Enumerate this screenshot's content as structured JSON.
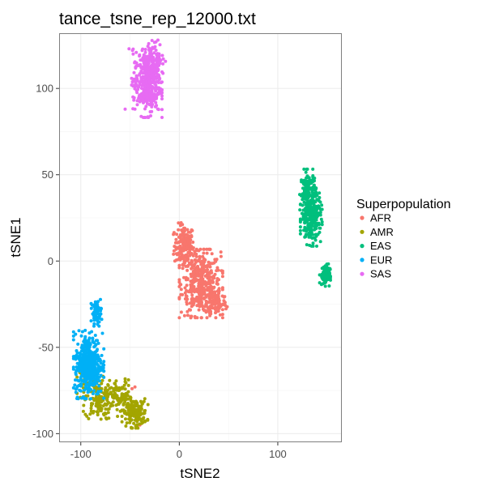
{
  "chart_data": {
    "type": "scatter",
    "title": "tance_tsne_rep_12000.txt",
    "xlabel": "tSNE2",
    "ylabel": "tSNE1",
    "xlim": [
      -122,
      165
    ],
    "ylim": [
      -105,
      132
    ],
    "x_ticks": [
      -100,
      0,
      100
    ],
    "y_ticks": [
      -100,
      -50,
      0,
      50,
      100
    ],
    "x_tick_labels": [
      "-100",
      "0",
      "100"
    ],
    "y_tick_labels": [
      "-100",
      "-50",
      "0",
      "50",
      "100"
    ],
    "grid": true,
    "legend_placement": "right",
    "legend_title": "Superpopulation",
    "series": [
      {
        "name": "AFR",
        "color": "#F8766D",
        "clusters": [
          {
            "cx": 5,
            "cy": 9,
            "sx": 5,
            "sy": 6,
            "n": 160
          },
          {
            "cx": 22,
            "cy": -13,
            "sx": 10,
            "sy": 9,
            "n": 420
          },
          {
            "cx": 38,
            "cy": -24,
            "sx": 5,
            "sy": 4,
            "n": 90
          }
        ],
        "extra_points": [
          [
            -48,
            -74
          ],
          [
            -40,
            -95
          ],
          [
            -45,
            -73
          ]
        ]
      },
      {
        "name": "AMR",
        "color": "#A3A500",
        "clusters": [
          {
            "cx": -82,
            "cy": -80,
            "sx": 7,
            "sy": 6,
            "n": 140
          },
          {
            "cx": -60,
            "cy": -79,
            "sx": 6,
            "sy": 5,
            "n": 90
          },
          {
            "cx": -45,
            "cy": -88,
            "sx": 6,
            "sy": 4,
            "n": 150
          },
          {
            "cx": -95,
            "cy": -68,
            "sx": 4,
            "sy": 5,
            "n": 40
          }
        ],
        "extra_points": []
      },
      {
        "name": "EAS",
        "color": "#00BF7D",
        "clusters": [
          {
            "cx": 131,
            "cy": 40,
            "sx": 4,
            "sy": 6,
            "n": 140
          },
          {
            "cx": 134,
            "cy": 24,
            "sx": 5,
            "sy": 7,
            "n": 220
          },
          {
            "cx": 148,
            "cy": -8,
            "sx": 2.5,
            "sy": 3,
            "n": 90
          }
        ],
        "extra_points": []
      },
      {
        "name": "EUR",
        "color": "#00B0F6",
        "clusters": [
          {
            "cx": -92,
            "cy": -60,
            "sx": 7,
            "sy": 9,
            "n": 420
          },
          {
            "cx": -84,
            "cy": -30,
            "sx": 2.5,
            "sy": 3.5,
            "n": 60
          }
        ],
        "extra_points": []
      },
      {
        "name": "SAS",
        "color": "#E76BF3",
        "clusters": [
          {
            "cx": -33,
            "cy": 103,
            "sx": 7,
            "sy": 9,
            "n": 380
          },
          {
            "cx": -25,
            "cy": 117,
            "sx": 5,
            "sy": 5,
            "n": 100
          }
        ],
        "extra_points": [
          [
            -51,
            123
          ],
          [
            -45,
            88
          ],
          [
            -55,
            88
          ]
        ]
      }
    ]
  }
}
